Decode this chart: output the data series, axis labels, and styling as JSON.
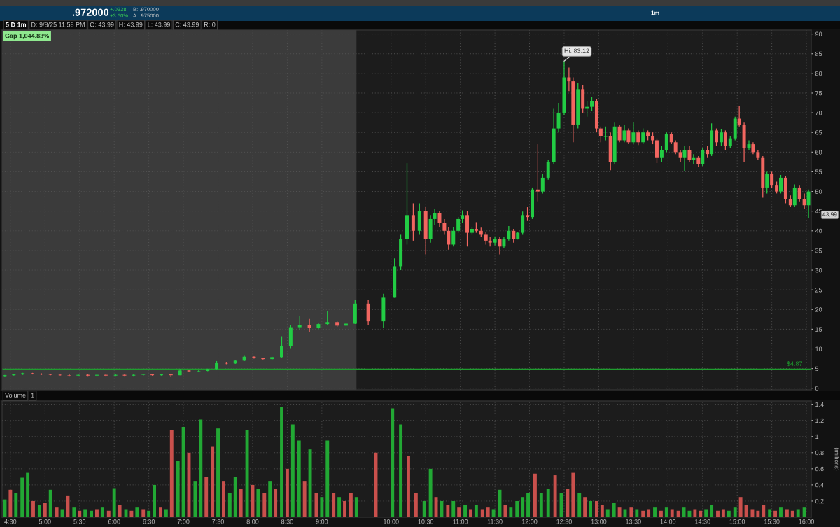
{
  "chart_data": [
    {
      "type": "candlestick",
      "x": [
        4.42,
        4.55,
        4.68,
        4.82,
        4.95,
        5.08,
        5.22,
        5.35,
        5.48,
        5.62,
        5.75,
        5.88,
        6.02,
        6.15,
        6.28,
        6.42,
        6.55,
        6.68,
        6.82,
        6.95,
        7.08,
        7.22,
        7.35,
        7.48,
        7.62,
        7.75,
        7.88,
        8.02,
        8.15,
        8.28,
        8.42,
        8.55,
        8.68,
        8.82,
        8.95,
        9.08,
        9.22,
        9.35,
        9.48,
        9.67,
        9.89,
        10.05,
        10.14,
        10.23,
        10.32,
        10.41,
        10.5,
        10.57,
        10.63,
        10.7,
        10.77,
        10.83,
        10.9,
        10.97,
        11.03,
        11.1,
        11.17,
        11.23,
        11.3,
        11.37,
        11.43,
        11.5,
        11.57,
        11.63,
        11.7,
        11.77,
        11.83,
        11.9,
        11.97,
        12.04,
        12.12,
        12.19,
        12.27,
        12.35,
        12.42,
        12.5,
        12.57,
        12.63,
        12.7,
        12.77,
        12.83,
        12.9,
        12.97,
        13.03,
        13.1,
        13.17,
        13.23,
        13.3,
        13.37,
        13.43,
        13.5,
        13.57,
        13.64,
        13.71,
        13.78,
        13.84,
        13.91,
        13.98,
        14.05,
        14.11,
        14.18,
        14.24,
        14.31,
        14.37,
        14.44,
        14.5,
        14.57,
        14.63,
        14.7,
        14.77,
        14.83,
        14.9,
        14.97,
        15.03,
        15.1,
        15.17,
        15.23,
        15.3,
        15.37,
        15.43,
        15.5,
        15.57,
        15.63,
        15.7,
        15.77,
        15.83,
        15.9,
        15.97,
        16.03
      ],
      "ohlc": [
        [
          3.1,
          3.4,
          3.0,
          3.3
        ],
        [
          3.3,
          3.6,
          3.2,
          3.5
        ],
        [
          3.5,
          3.9,
          3.4,
          3.8
        ],
        [
          3.8,
          3.9,
          3.5,
          3.6
        ],
        [
          3.6,
          3.8,
          3.4,
          3.5
        ],
        [
          3.5,
          3.7,
          3.3,
          3.4
        ],
        [
          3.4,
          3.6,
          3.2,
          3.3
        ],
        [
          3.3,
          3.5,
          3.1,
          3.2
        ],
        [
          3.2,
          3.5,
          3.1,
          3.4
        ],
        [
          3.4,
          3.5,
          3.1,
          3.2
        ],
        [
          3.2,
          3.5,
          3.1,
          3.4
        ],
        [
          3.4,
          3.5,
          3.1,
          3.2
        ],
        [
          3.2,
          3.5,
          3.1,
          3.4
        ],
        [
          3.4,
          3.5,
          3.1,
          3.2
        ],
        [
          3.2,
          3.5,
          3.1,
          3.4
        ],
        [
          3.4,
          3.6,
          3.2,
          3.5
        ],
        [
          3.5,
          3.6,
          3.2,
          3.3
        ],
        [
          3.3,
          3.6,
          3.2,
          3.5
        ],
        [
          3.5,
          3.6,
          3.0,
          3.3
        ],
        [
          3.3,
          4.9,
          3.3,
          4.5
        ],
        [
          4.5,
          4.6,
          4.2,
          4.3
        ],
        [
          4.3,
          4.6,
          4.2,
          4.4
        ],
        [
          4.4,
          5.0,
          4.3,
          4.9
        ],
        [
          4.9,
          6.9,
          4.8,
          6.5
        ],
        [
          6.5,
          6.7,
          6.1,
          6.3
        ],
        [
          6.3,
          7.2,
          6.2,
          7.0
        ],
        [
          7.0,
          8.4,
          6.9,
          8.0
        ],
        [
          8.0,
          8.1,
          7.5,
          7.6
        ],
        [
          7.6,
          7.7,
          7.3,
          7.4
        ],
        [
          7.4,
          8.0,
          7.3,
          7.9
        ],
        [
          7.9,
          13.2,
          7.8,
          10.8
        ],
        [
          10.8,
          16.0,
          10.2,
          15.5
        ],
        [
          15.5,
          18.4,
          14.8,
          16.0
        ],
        [
          16.0,
          17.6,
          14.2,
          15.3
        ],
        [
          15.3,
          16.6,
          15.0,
          16.3
        ],
        [
          16.3,
          19.6,
          16.0,
          16.8
        ],
        [
          16.8,
          17.0,
          15.6,
          15.9
        ],
        [
          15.9,
          16.6,
          15.8,
          16.4
        ],
        [
          16.4,
          22.5,
          16.3,
          21.5
        ],
        [
          21.5,
          22.4,
          16.0,
          17.0
        ],
        [
          17.0,
          24.0,
          15.3,
          23.0
        ],
        [
          23.0,
          33.0,
          23.0,
          31.0
        ],
        [
          31.0,
          39.0,
          30.0,
          38.0
        ],
        [
          38.0,
          57.2,
          36.5,
          44.0
        ],
        [
          44.0,
          47.0,
          37.5,
          40.0
        ],
        [
          40.0,
          47.0,
          39.0,
          45.0
        ],
        [
          45.0,
          46.0,
          34.0,
          38.0
        ],
        [
          38.0,
          44.0,
          37.0,
          43.0
        ],
        [
          43.0,
          45.5,
          41.5,
          44.5
        ],
        [
          44.5,
          45.0,
          41.0,
          42.0
        ],
        [
          42.0,
          43.0,
          39.0,
          40.0
        ],
        [
          40.0,
          41.0,
          35.2,
          36.5
        ],
        [
          36.5,
          41.0,
          36.0,
          40.0
        ],
        [
          40.0,
          43.5,
          39.5,
          43.0
        ],
        [
          43.0,
          45.2,
          42.0,
          44.0
        ],
        [
          44.0,
          45.0,
          36.0,
          39.5
        ],
        [
          39.5,
          41.0,
          39.0,
          40.5
        ],
        [
          40.5,
          42.2,
          39.5,
          40.0
        ],
        [
          40.0,
          40.8,
          38.5,
          39.0
        ],
        [
          39.0,
          39.8,
          36.5,
          37.5
        ],
        [
          37.5,
          38.5,
          36.0,
          37.0
        ],
        [
          37.0,
          38.6,
          36.3,
          38.0
        ],
        [
          38.0,
          38.5,
          34.0,
          36.0
        ],
        [
          36.0,
          38.5,
          35.5,
          38.0
        ],
        [
          38.0,
          41.2,
          37.5,
          40.0
        ],
        [
          40.0,
          40.5,
          37.0,
          38.0
        ],
        [
          38.0,
          39.8,
          37.8,
          39.5
        ],
        [
          39.5,
          44.9,
          39.0,
          44.0
        ],
        [
          44.0,
          46.0,
          42.5,
          43.5
        ],
        [
          43.5,
          51.0,
          43.0,
          50.5
        ],
        [
          50.5,
          62.0,
          47.5,
          50.0
        ],
        [
          50.0,
          54.5,
          49.5,
          53.5
        ],
        [
          53.5,
          58.0,
          53.0,
          57.5
        ],
        [
          57.5,
          71.0,
          57.0,
          66.0
        ],
        [
          66.0,
          72.5,
          65.0,
          70.0
        ],
        [
          70.0,
          83.12,
          69.5,
          79.0
        ],
        [
          79.0,
          81.5,
          75.5,
          78.0
        ],
        [
          78.0,
          79.0,
          62.5,
          67.0
        ],
        [
          67.0,
          77.5,
          66.0,
          76.0
        ],
        [
          76.0,
          77.0,
          70.0,
          71.0
        ],
        [
          71.0,
          73.0,
          69.0,
          71.5
        ],
        [
          71.5,
          74.0,
          70.5,
          73.0
        ],
        [
          73.0,
          73.5,
          65.0,
          66.0
        ],
        [
          66.0,
          66.5,
          62.5,
          64.0
        ],
        [
          64.0,
          66.5,
          63.0,
          64.0
        ],
        [
          64.0,
          65.0,
          55.4,
          57.5
        ],
        [
          57.5,
          67.5,
          57.0,
          66.5
        ],
        [
          66.5,
          67.0,
          62.5,
          63.0
        ],
        [
          63.0,
          67.0,
          62.5,
          65.5
        ],
        [
          65.5,
          66.0,
          62.0,
          62.5
        ],
        [
          62.5,
          67.5,
          62.0,
          65.0
        ],
        [
          65.0,
          65.5,
          61.8,
          62.5
        ],
        [
          62.5,
          66.0,
          62.0,
          65.0
        ],
        [
          65.0,
          65.5,
          63.0,
          64.0
        ],
        [
          64.0,
          65.0,
          62.0,
          63.0
        ],
        [
          63.0,
          63.5,
          57.2,
          58.5
        ],
        [
          58.5,
          61.5,
          57.5,
          60.5
        ],
        [
          60.5,
          65.0,
          60.0,
          64.5
        ],
        [
          64.5,
          65.0,
          62.0,
          62.5
        ],
        [
          62.5,
          63.0,
          59.5,
          60.0
        ],
        [
          60.0,
          60.5,
          57.5,
          58.5
        ],
        [
          58.5,
          61.5,
          55.1,
          60.5
        ],
        [
          60.5,
          61.5,
          57.5,
          58.0
        ],
        [
          58.0,
          59.5,
          57.0,
          58.5
        ],
        [
          58.5,
          59.0,
          56.3,
          57.0
        ],
        [
          57.0,
          61.0,
          56.5,
          60.5
        ],
        [
          60.5,
          61.5,
          58.5,
          59.5
        ],
        [
          59.5,
          67.3,
          59.0,
          65.5
        ],
        [
          65.5,
          66.0,
          61.5,
          62.5
        ],
        [
          62.5,
          65.8,
          61.5,
          65.0
        ],
        [
          65.0,
          65.5,
          60.5,
          61.5
        ],
        [
          61.5,
          64.0,
          61.0,
          63.5
        ],
        [
          63.5,
          69.0,
          63.0,
          68.5
        ],
        [
          68.5,
          71.7,
          66.5,
          67.0
        ],
        [
          67.0,
          67.5,
          57.5,
          61.0
        ],
        [
          61.0,
          63.0,
          60.5,
          62.0
        ],
        [
          62.0,
          62.5,
          59.5,
          60.0
        ],
        [
          60.0,
          60.5,
          58.0,
          58.5
        ],
        [
          58.5,
          59.0,
          48.4,
          51.0
        ],
        [
          51.0,
          55.0,
          49.5,
          54.5
        ],
        [
          54.5,
          55.0,
          51.0,
          51.5
        ],
        [
          51.5,
          52.5,
          49.5,
          50.0
        ],
        [
          50.0,
          54.2,
          49.5,
          53.5
        ],
        [
          53.5,
          54.0,
          47.0,
          48.0
        ],
        [
          48.0,
          49.0,
          46.0,
          46.5
        ],
        [
          46.5,
          51.8,
          46.0,
          51.0
        ],
        [
          51.0,
          51.5,
          47.5,
          48.0
        ],
        [
          48.0,
          49.5,
          45.5,
          46.5
        ],
        [
          46.5,
          50.5,
          43.2,
          50.0
        ]
      ],
      "colors": [
        "#22cc44",
        "#22cc44",
        "#22cc44",
        "#f26660",
        "#f26660",
        "#f26660",
        "#f26660",
        "#f26660",
        "#22cc44",
        "#f26660",
        "#22cc44",
        "#f26660",
        "#22cc44",
        "#f26660",
        "#22cc44",
        "#22cc44",
        "#f26660",
        "#22cc44",
        "#f26660",
        "#22cc44",
        "#f26660",
        "#22cc44",
        "#22cc44",
        "#22cc44",
        "#f26660",
        "#22cc44",
        "#22cc44",
        "#f26660",
        "#f26660",
        "#22cc44",
        "#22cc44",
        "#22cc44",
        "#22cc44",
        "#f26660",
        "#22cc44",
        "#22cc44",
        "#f26660",
        "#22cc44",
        "#22cc44",
        "#f26660",
        "#22cc44",
        "#22cc44",
        "#22cc44",
        "#22cc44",
        "#f26660",
        "#22cc44",
        "#f26660",
        "#22cc44",
        "#22cc44",
        "#f26660",
        "#f26660",
        "#f26660",
        "#22cc44",
        "#22cc44",
        "#22cc44",
        "#f26660",
        "#22cc44",
        "#f26660",
        "#f26660",
        "#f26660",
        "#f26660",
        "#22cc44",
        "#f26660",
        "#22cc44",
        "#22cc44",
        "#f26660",
        "#22cc44",
        "#22cc44",
        "#f26660",
        "#22cc44",
        "#f26660",
        "#22cc44",
        "#22cc44",
        "#22cc44",
        "#22cc44",
        "#22cc44",
        "#f26660",
        "#f26660",
        "#22cc44",
        "#f26660",
        "#22cc44",
        "#22cc44",
        "#f26660",
        "#f26660",
        "#22cc44",
        "#f26660",
        "#22cc44",
        "#f26660",
        "#22cc44",
        "#f26660",
        "#22cc44",
        "#f26660",
        "#22cc44",
        "#f26660",
        "#f26660",
        "#f26660",
        "#22cc44",
        "#22cc44",
        "#f26660",
        "#f26660",
        "#f26660",
        "#22cc44",
        "#f26660",
        "#22cc44",
        "#f26660",
        "#22cc44",
        "#f26660",
        "#22cc44",
        "#f26660",
        "#22cc44",
        "#f26660",
        "#22cc44",
        "#22cc44",
        "#f26660",
        "#f26660",
        "#22cc44",
        "#f26660",
        "#f26660",
        "#f26660",
        "#22cc44",
        "#f26660",
        "#f26660",
        "#22cc44",
        "#f26660",
        "#f26660",
        "#22cc44",
        "#f26660",
        "#f26660",
        "#22cc44"
      ],
      "xlim": [
        4.38,
        16.07
      ],
      "xticks": [
        {
          "value": 4.5,
          "label": null
        },
        {
          "value": 5,
          "label": null
        },
        {
          "value": 5.5,
          "label": null
        },
        {
          "value": 6,
          "label": null
        },
        {
          "value": 6.5,
          "label": null
        },
        {
          "value": 7,
          "label": null
        },
        {
          "value": 7.5,
          "label": null
        },
        {
          "value": 8,
          "label": null
        },
        {
          "value": 8.5,
          "label": null
        },
        {
          "value": 9,
          "label": null
        },
        {
          "value": 10,
          "label": null
        },
        {
          "value": 10.5,
          "label": null
        },
        {
          "value": 11,
          "label": null
        },
        {
          "value": 11.5,
          "label": null
        },
        {
          "value": 12,
          "label": null
        },
        {
          "value": 12.5,
          "label": null
        },
        {
          "value": 13,
          "label": null
        },
        {
          "value": 13.5,
          "label": null
        },
        {
          "value": 14,
          "label": null
        },
        {
          "value": 14.5,
          "label": null
        },
        {
          "value": 15,
          "label": null
        },
        {
          "value": 15.5,
          "label": null
        },
        {
          "value": 16,
          "label": null
        }
      ],
      "ylim": [
        -0.4,
        91
      ],
      "yticks": [
        0,
        5,
        10,
        15,
        20,
        25,
        30,
        35,
        40,
        45,
        50,
        55,
        60,
        65,
        70,
        75,
        80,
        85,
        90
      ],
      "grid": true,
      "tick_labels": "y",
      "bands": [
        {
          "axis": "x",
          "from": 4.38,
          "to": 9.5,
          "color": "#3b3b3b"
        }
      ],
      "ref_lines": [
        {
          "axis": "y",
          "value": 4.87,
          "label": "$4.87",
          "color": "#1e9e2e"
        }
      ],
      "annotations": [
        "Gap 1,044.83%",
        "43.99",
        ".972000",
        "+.0338",
        "+3.60%",
        "B: .970000",
        "A: .975000",
        "1m",
        "5 D 1m",
        "D: 9/8/25 11:58 PM",
        "O: 43.99",
        "H: 43.99",
        "L: 43.99",
        "C: 43.99",
        "R: 0",
        {
          "text": "Hi: 83.12",
          "x": 12.5,
          "y": 83.12
        }
      ]
    },
    {
      "type": "bar",
      "title": "Volume",
      "x": [
        4.42,
        4.5,
        4.58,
        4.67,
        4.75,
        4.83,
        4.92,
        5.0,
        5.08,
        5.17,
        5.25,
        5.33,
        5.42,
        5.5,
        5.58,
        5.67,
        5.75,
        5.83,
        5.92,
        6.0,
        6.08,
        6.17,
        6.25,
        6.33,
        6.42,
        6.5,
        6.58,
        6.67,
        6.75,
        6.83,
        6.92,
        7.0,
        7.08,
        7.17,
        7.25,
        7.33,
        7.42,
        7.5,
        7.58,
        7.67,
        7.75,
        7.83,
        7.92,
        8.0,
        8.08,
        8.17,
        8.25,
        8.33,
        8.42,
        8.5,
        8.58,
        8.67,
        8.75,
        8.83,
        8.92,
        9.0,
        9.08,
        9.17,
        9.25,
        9.33,
        9.42,
        9.5,
        9.78,
        10.02,
        10.14,
        10.25,
        10.36,
        10.48,
        10.57,
        10.65,
        10.73,
        10.82,
        10.9,
        10.98,
        11.07,
        11.15,
        11.23,
        11.32,
        11.4,
        11.48,
        11.57,
        11.65,
        11.73,
        11.82,
        11.9,
        11.98,
        12.08,
        12.17,
        12.27,
        12.37,
        12.46,
        12.55,
        12.63,
        12.72,
        12.8,
        12.88,
        12.97,
        13.05,
        13.13,
        13.22,
        13.3,
        13.38,
        13.47,
        13.55,
        13.64,
        13.72,
        13.81,
        13.9,
        13.98,
        14.06,
        14.15,
        14.23,
        14.31,
        14.39,
        14.47,
        14.55,
        14.63,
        14.72,
        14.8,
        14.88,
        14.97,
        15.05,
        15.13,
        15.22,
        15.3,
        15.38,
        15.47,
        15.55,
        15.63,
        15.72,
        15.8,
        15.88,
        15.97
      ],
      "values": [
        0.22,
        0.34,
        0.3,
        0.49,
        0.55,
        0.2,
        0.15,
        0.18,
        0.34,
        0.12,
        0.1,
        0.27,
        0.12,
        0.08,
        0.1,
        0.08,
        0.1,
        0.12,
        0.08,
        0.36,
        0.15,
        0.1,
        0.08,
        0.12,
        0.1,
        0.08,
        0.4,
        0.12,
        0.1,
        1.08,
        0.7,
        1.12,
        0.8,
        0.45,
        1.21,
        0.5,
        0.88,
        1.1,
        0.45,
        0.3,
        0.5,
        0.35,
        1.08,
        0.4,
        0.35,
        0.3,
        0.45,
        0.35,
        1.37,
        0.6,
        1.15,
        0.95,
        0.45,
        0.84,
        0.3,
        0.25,
        0.95,
        0.3,
        0.25,
        0.2,
        0.3,
        0.25,
        0.8,
        1.35,
        1.15,
        0.76,
        0.3,
        0.2,
        0.6,
        0.25,
        0.2,
        0.15,
        0.2,
        0.12,
        0.15,
        0.1,
        0.15,
        0.1,
        0.12,
        0.1,
        0.34,
        0.15,
        0.12,
        0.2,
        0.25,
        0.3,
        0.54,
        0.3,
        0.35,
        0.52,
        0.3,
        0.35,
        0.55,
        0.3,
        0.25,
        0.2,
        0.2,
        0.15,
        0.1,
        0.18,
        0.12,
        0.1,
        0.12,
        0.1,
        0.08,
        0.1,
        0.12,
        0.08,
        0.12,
        0.1,
        0.08,
        0.12,
        0.08,
        0.1,
        0.08,
        0.1,
        0.15,
        0.08,
        0.1,
        0.08,
        0.12,
        0.25,
        0.15,
        0.1,
        0.08,
        0.15,
        0.1,
        0.08,
        0.12,
        0.1,
        0.08,
        0.1,
        0.12
      ],
      "colors": [
        "#22a834",
        "#c9504c",
        "#22a834",
        "#22a834",
        "#22a834",
        "#c9504c",
        "#22a834",
        "#c9504c",
        "#22a834",
        "#c9504c",
        "#22a834",
        "#c9504c",
        "#22a834",
        "#c9504c",
        "#22a834",
        "#22a834",
        "#c9504c",
        "#22a834",
        "#c9504c",
        "#22a834",
        "#c9504c",
        "#22a834",
        "#c9504c",
        "#22a834",
        "#c9504c",
        "#22a834",
        "#22a834",
        "#c9504c",
        "#22a834",
        "#c9504c",
        "#22a834",
        "#22a834",
        "#c9504c",
        "#22a834",
        "#22a834",
        "#c9504c",
        "#c9504c",
        "#22a834",
        "#c9504c",
        "#22a834",
        "#22a834",
        "#c9504c",
        "#22a834",
        "#c9504c",
        "#22a834",
        "#c9504c",
        "#22a834",
        "#c9504c",
        "#22a834",
        "#c9504c",
        "#22a834",
        "#22a834",
        "#c9504c",
        "#22a834",
        "#c9504c",
        "#22a834",
        "#22a834",
        "#c9504c",
        "#22a834",
        "#c9504c",
        "#c9504c",
        "#22a834",
        "#c9504c",
        "#22a834",
        "#22a834",
        "#c9504c",
        "#c9504c",
        "#22a834",
        "#22a834",
        "#c9504c",
        "#22a834",
        "#c9504c",
        "#22a834",
        "#c9504c",
        "#22a834",
        "#c9504c",
        "#22a834",
        "#c9504c",
        "#c9504c",
        "#22a834",
        "#22a834",
        "#c9504c",
        "#22a834",
        "#22a834",
        "#22a834",
        "#22a834",
        "#c9504c",
        "#22a834",
        "#22a834",
        "#c9504c",
        "#22a834",
        "#c9504c",
        "#c9504c",
        "#22a834",
        "#c9504c",
        "#22a834",
        "#c9504c",
        "#c9504c",
        "#22a834",
        "#22a834",
        "#c9504c",
        "#22a834",
        "#c9504c",
        "#22a834",
        "#c9504c",
        "#c9504c",
        "#22a834",
        "#c9504c",
        "#22a834",
        "#c9504c",
        "#c9504c",
        "#22a834",
        "#22a834",
        "#c9504c",
        "#c9504c",
        "#22a834",
        "#22a834",
        "#c9504c",
        "#c9504c",
        "#22a834",
        "#22a834",
        "#c9504c",
        "#c9504c",
        "#c9504c",
        "#c9504c",
        "#c9504c",
        "#22a834",
        "#c9504c",
        "#22a834",
        "#c9504c",
        "#c9504c",
        "#22a834",
        "#22a834"
      ],
      "xlim": [
        4.38,
        16.07
      ],
      "xticks": [
        {
          "value": 4.5,
          "label": "4:30"
        },
        {
          "value": 5,
          "label": "5:00"
        },
        {
          "value": 5.5,
          "label": "5:30"
        },
        {
          "value": 6,
          "label": "6:00"
        },
        {
          "value": 6.5,
          "label": "6:30"
        },
        {
          "value": 7,
          "label": "7:00"
        },
        {
          "value": 7.5,
          "label": "7:30"
        },
        {
          "value": 8,
          "label": "8:00"
        },
        {
          "value": 8.5,
          "label": "8:30"
        },
        {
          "value": 9,
          "label": "9:00"
        },
        {
          "value": 10,
          "label": "10:00"
        },
        {
          "value": 10.5,
          "label": "10:30"
        },
        {
          "value": 11,
          "label": "11:00"
        },
        {
          "value": 11.5,
          "label": "11:30"
        },
        {
          "value": 12,
          "label": "12:00"
        },
        {
          "value": 12.5,
          "label": "12:30"
        },
        {
          "value": 13,
          "label": "13:00"
        },
        {
          "value": 13.5,
          "label": "13:30"
        },
        {
          "value": 14,
          "label": "14:00"
        },
        {
          "value": 14.5,
          "label": "14:30"
        },
        {
          "value": 15,
          "label": "15:00"
        },
        {
          "value": 15.5,
          "label": "15:30"
        },
        {
          "value": 16,
          "label": "16:00"
        }
      ],
      "ylim": [
        0,
        1.44
      ],
      "yticks": [
        0.2,
        0.4,
        0.6,
        0.8,
        1,
        1.2,
        1.4
      ],
      "grid": true,
      "ylabel": "(millions)",
      "annotations": [
        "1"
      ]
    }
  ]
}
